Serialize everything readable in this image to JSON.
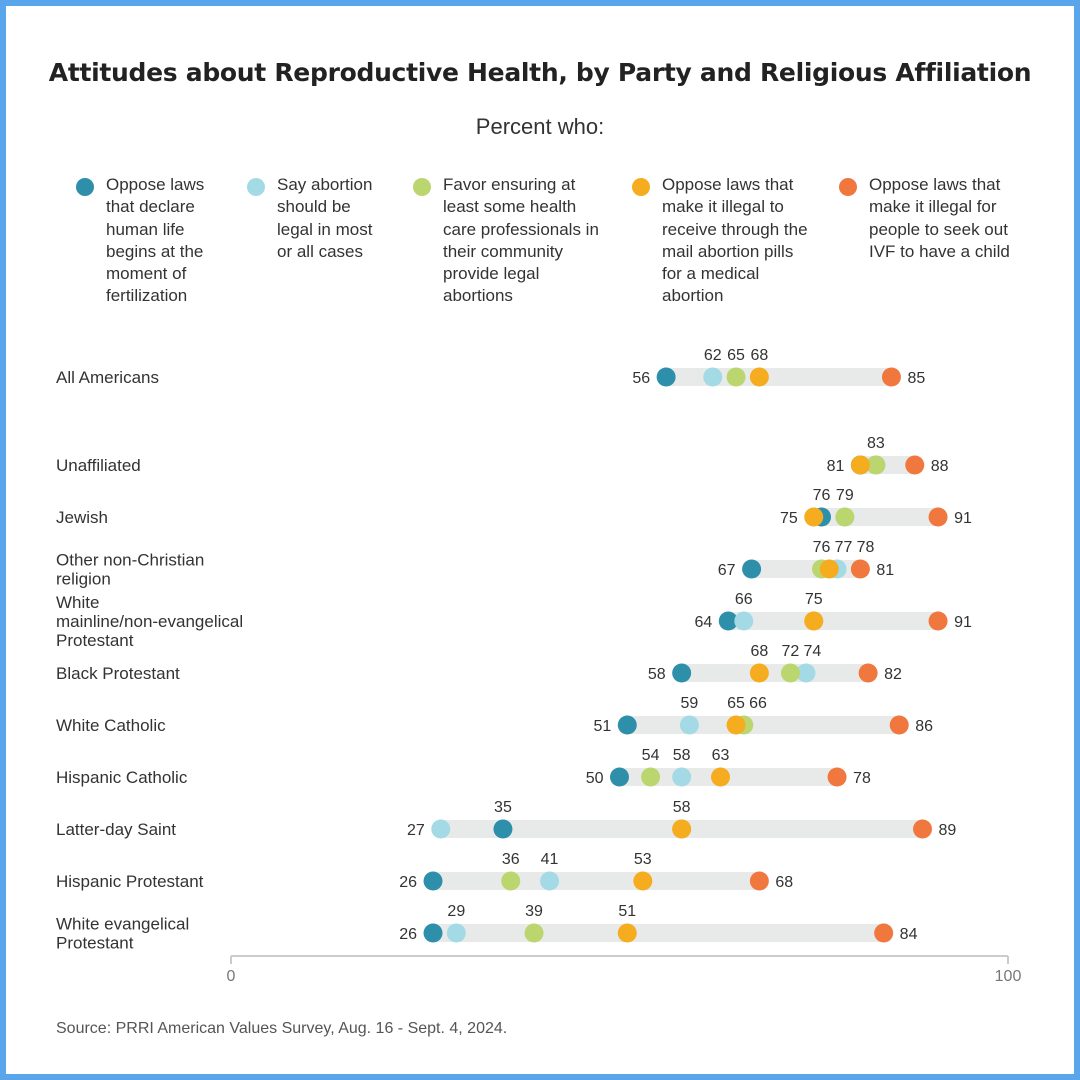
{
  "title": "Attitudes about Reproductive Health, by Party and Religious Affiliation",
  "subtitle": "Percent who:",
  "source": "Source: PRRI American Values Survey, Aug. 16 - Sept. 4, 2024.",
  "colors": {
    "frame": "#5aa6ec",
    "track": "#e8eaea",
    "axis": "#c9cccc"
  },
  "chart_data": {
    "type": "dot",
    "xlim": [
      0,
      100
    ],
    "x_tick_labels": [
      "0",
      "100"
    ],
    "grid": false,
    "legend_placement": "top",
    "series": [
      {
        "name": "Oppose laws that declare human life begins at the moment of fertilization",
        "color": "#2e8fab"
      },
      {
        "name": "Say abortion should be legal in most or all cases",
        "color": "#a3dae6"
      },
      {
        "name": "Favor ensuring at least some health care professionals in their community provide legal abortions",
        "color": "#bcd66f"
      },
      {
        "name": "Oppose laws that make it illegal to receive through the mail abortion pills for a medical abortion",
        "color": "#f5ac1f"
      },
      {
        "name": "Oppose laws that make it illegal for people to seek out IVF to have a child",
        "color": "#f0783e"
      }
    ],
    "categories": [
      {
        "label": "All Americans",
        "values": [
          56,
          62,
          65,
          68,
          85
        ]
      },
      {
        "label": "Unaffiliated",
        "values": [
          81,
          83,
          83,
          81,
          88
        ]
      },
      {
        "label": "Jewish",
        "values": [
          76,
          79,
          79,
          75,
          91
        ]
      },
      {
        "label": "Other non-Christian religion",
        "values": [
          67,
          78,
          76,
          77,
          81
        ]
      },
      {
        "label": "White mainline/non-evangelical Protestant",
        "values": [
          64,
          66,
          75,
          75,
          91
        ]
      },
      {
        "label": "Black Protestant",
        "values": [
          58,
          74,
          72,
          68,
          82
        ]
      },
      {
        "label": "White Catholic",
        "values": [
          51,
          59,
          66,
          65,
          86
        ]
      },
      {
        "label": "Hispanic Catholic",
        "values": [
          50,
          58,
          54,
          63,
          78
        ]
      },
      {
        "label": "Latter-day Saint",
        "values": [
          35,
          27,
          58,
          58,
          89
        ]
      },
      {
        "label": "Hispanic Protestant",
        "values": [
          26,
          41,
          36,
          53,
          68
        ]
      },
      {
        "label": "White evangelical Protestant",
        "values": [
          26,
          29,
          39,
          51,
          84
        ]
      }
    ]
  }
}
